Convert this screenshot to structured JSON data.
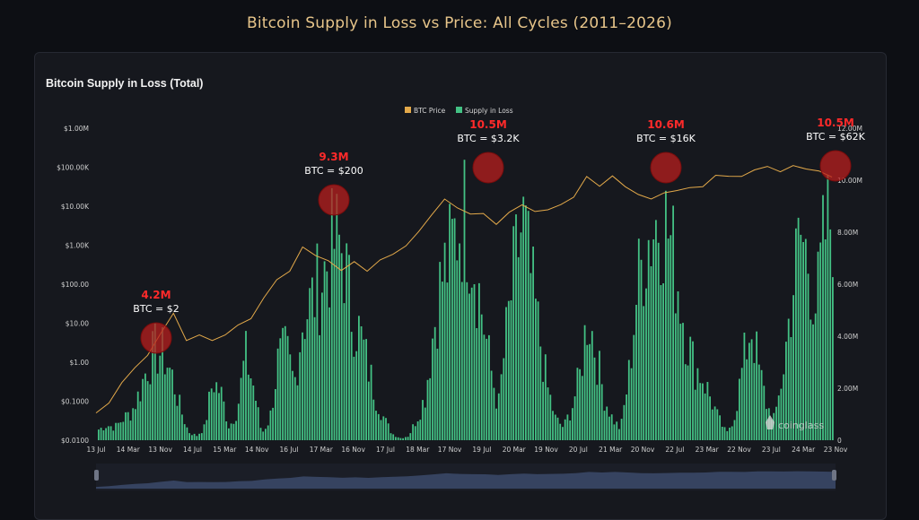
{
  "page": {
    "title": "Bitcoin Supply in Loss vs Price: All Cycles (2011–2026)"
  },
  "panel": {
    "title": "Bitcoin Supply in Loss (Total)"
  },
  "watermark": "coinglass",
  "colors": {
    "price": "#e3a94a",
    "supply": "#43c184",
    "highlight": "#b81d1d",
    "callout": "#ff2a2a"
  },
  "chart_data": {
    "type": "line",
    "legend": {
      "position": "top-center",
      "entries": [
        "BTC Price",
        "Supply in Loss"
      ]
    },
    "left_axis": {
      "scale": "log",
      "ticks": [
        "$0.0100",
        "$0.1000",
        "$1.00",
        "$10.00",
        "$100.00",
        "$1.00K",
        "$10.00K",
        "$100.00K",
        "$1.00M"
      ]
    },
    "right_axis": {
      "ticks": [
        "0",
        "2.00M",
        "4.00M",
        "6.00M",
        "8.00M",
        "10.00M",
        "12.00M"
      ],
      "range": [
        0,
        12000000
      ]
    },
    "x_ticks": [
      "13 Jul",
      "14 Mar",
      "13 Nov",
      "14 Jul",
      "15 Mar",
      "14 Nov",
      "16 Jul",
      "17 Mar",
      "16 Nov",
      "17 Jul",
      "18 Mar",
      "17 Nov",
      "19 Jul",
      "20 Mar",
      "19 Nov",
      "20 Jul",
      "21 Mar",
      "20 Nov",
      "22 Jul",
      "23 Mar",
      "22 Nov",
      "23 Jul",
      "24 Mar",
      "23 Nov"
    ],
    "grid": false,
    "series": [
      {
        "name": "BTC Price",
        "axis": "left",
        "points": [
          [
            0,
            0.05
          ],
          [
            1,
            0.1
          ],
          [
            2,
            0.3
          ],
          [
            3,
            0.8
          ],
          [
            4,
            1.5
          ],
          [
            5,
            6
          ],
          [
            6,
            18
          ],
          [
            7,
            4
          ],
          [
            8,
            5
          ],
          [
            9,
            4
          ],
          [
            10,
            5
          ],
          [
            11,
            10
          ],
          [
            12,
            13
          ],
          [
            13,
            50
          ],
          [
            14,
            130
          ],
          [
            15,
            240
          ],
          [
            16,
            900
          ],
          [
            17,
            600
          ],
          [
            18,
            400
          ],
          [
            19,
            250
          ],
          [
            20,
            380
          ],
          [
            21,
            240
          ],
          [
            22,
            420
          ],
          [
            23,
            650
          ],
          [
            24,
            960
          ],
          [
            25,
            2500
          ],
          [
            26,
            6000
          ],
          [
            27,
            17000
          ],
          [
            28,
            9000
          ],
          [
            29,
            7000
          ],
          [
            30,
            6500
          ],
          [
            31,
            3800
          ],
          [
            32,
            7000
          ],
          [
            33,
            12000
          ],
          [
            34,
            7300
          ],
          [
            35,
            9000
          ],
          [
            36,
            11000
          ],
          [
            37,
            19000
          ],
          [
            38,
            58000
          ],
          [
            39,
            36000
          ],
          [
            40,
            60000
          ],
          [
            41,
            35000
          ],
          [
            42,
            20000
          ],
          [
            43,
            17000
          ],
          [
            44,
            22000
          ],
          [
            45,
            28000
          ],
          [
            46,
            30000
          ],
          [
            47,
            35000
          ],
          [
            48,
            62000
          ],
          [
            49,
            65000
          ],
          [
            50,
            58000
          ],
          [
            51,
            95000
          ],
          [
            52,
            105000
          ],
          [
            53,
            85000
          ],
          [
            54,
            110000
          ],
          [
            55,
            100000
          ],
          [
            56,
            80000
          ],
          [
            57,
            62000
          ]
        ]
      },
      {
        "name": "Supply in Loss",
        "axis": "right",
        "values_millions": [
          0.5,
          0.7,
          0.6,
          1.0,
          1.3,
          2.2,
          3.5,
          4.2,
          4.0,
          3.0,
          1.5,
          0.4,
          0.2,
          0.6,
          2.8,
          2.2,
          0.6,
          1.4,
          4.0,
          2.5,
          0.3,
          1.0,
          3.7,
          4.2,
          2.6,
          5.6,
          6.4,
          7.2,
          8.2,
          9.3,
          8.8,
          6.0,
          5.0,
          3.5,
          2.0,
          1.0,
          0.3,
          0.1,
          0.2,
          1.0,
          2.0,
          5.0,
          7.5,
          8.5,
          10.0,
          10.5,
          8.5,
          6.0,
          3.5,
          1.5,
          5.0,
          8.0,
          10.2,
          7.5,
          5.0,
          2.5,
          1.0,
          0.6,
          1.5,
          3.0,
          6.0,
          4.0,
          2.0,
          1.0,
          0.5,
          3.0,
          7.0,
          9.0,
          10.0,
          10.6,
          9.5,
          7.5,
          5.0,
          3.5,
          3.0,
          2.0,
          1.0,
          0.3,
          1.2,
          3.5,
          5.5,
          3.2,
          1.5,
          1.0,
          3.5,
          6.8,
          9.5,
          8.4,
          6.2,
          9.6,
          10.5
        ]
      }
    ],
    "annotations": [
      {
        "supply": "4.2M",
        "price": "BTC = $2"
      },
      {
        "supply": "9.3M",
        "price": "BTC = $200"
      },
      {
        "supply": "10.5M",
        "price": "BTC = $3.2K"
      },
      {
        "supply": "10.6M",
        "price": "BTC = $16K"
      },
      {
        "supply": "10.5M",
        "price": "BTC = $62K"
      }
    ]
  }
}
